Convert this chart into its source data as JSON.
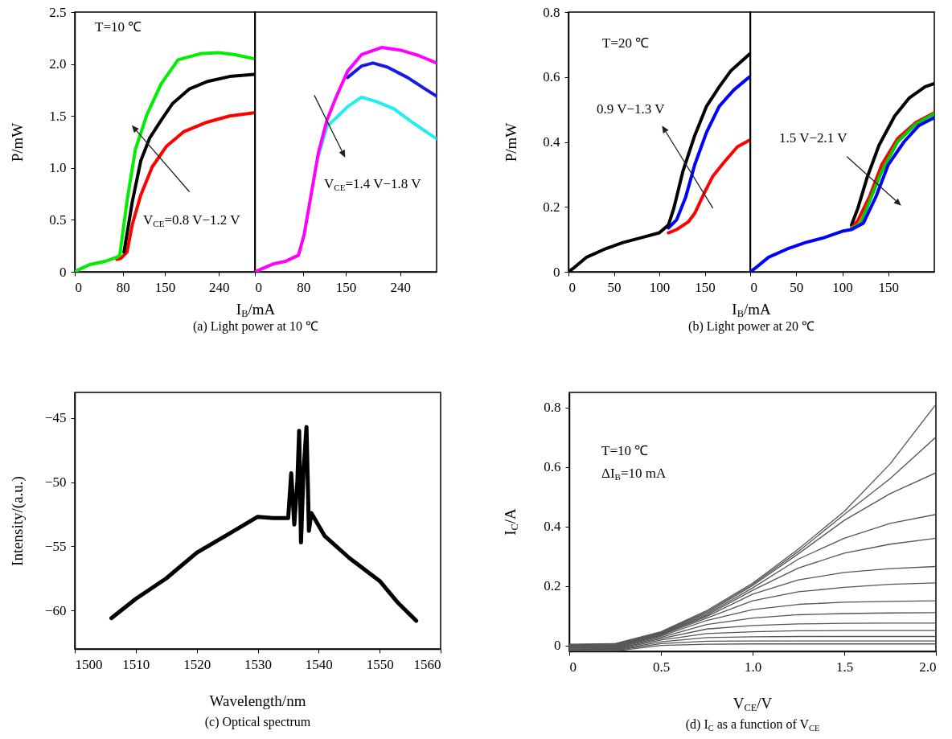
{
  "chart_data": [
    {
      "type": "line",
      "title": "(a) Light power at 10 ℃",
      "xlabel": "I$_{B}$/mA",
      "ylabel": "P/mW",
      "annotations": [
        "T=10 ℃",
        "V$_{CE}$=0.8 V−1.2 V"
      ],
      "xlim": [
        0,
        300
      ],
      "xticks": [
        0,
        80,
        150,
        240
      ],
      "ylim": [
        0,
        2.5
      ],
      "yticks": [
        0,
        0.5,
        {
          "value": 1,
          "label": "1.0"
        },
        1.5,
        {
          "value": 2,
          "label": "2.0"
        },
        2.5
      ],
      "series": [
        {
          "color": "#ff0000",
          "x": [
            70,
            77,
            87,
            96,
            110,
            129,
            153,
            182,
            220,
            258,
            299
          ],
          "values": [
            0.12,
            0.13,
            0.19,
            0.46,
            0.74,
            1.01,
            1.21,
            1.35,
            1.44,
            1.5,
            1.53
          ]
        },
        {
          "color": "#000000",
          "x": [
            82,
            96,
            110,
            125,
            144,
            163,
            191,
            220,
            258,
            299
          ],
          "values": [
            0.19,
            0.68,
            1.07,
            1.29,
            1.46,
            1.62,
            1.76,
            1.83,
            1.88,
            1.9
          ]
        },
        {
          "color": "#00ee00",
          "x": [
            0,
            10,
            25,
            50,
            70,
            75,
            87,
            101,
            120,
            144,
            172,
            210,
            239,
            267,
            299
          ],
          "values": [
            0,
            0.03,
            0.07,
            0.1,
            0.14,
            0.16,
            0.68,
            1.18,
            1.51,
            1.81,
            2.04,
            2.1,
            2.11,
            2.09,
            2.05
          ]
        }
      ]
    },
    {
      "type": "line",
      "tick_labels": "x",
      "annotations": [
        "V$_{CE}$=1.4 V−1.8 V"
      ],
      "xlim": [
        0,
        300
      ],
      "xticks": [
        0,
        80,
        150,
        240
      ],
      "ylim": [
        0,
        2.5
      ],
      "series": [
        {
          "color": "#22eeee",
          "x": [
            105,
            119,
            134,
            153,
            176,
            200,
            229,
            262,
            300
          ],
          "values": [
            1.12,
            1.4,
            1.48,
            1.59,
            1.68,
            1.64,
            1.57,
            1.43,
            1.28
          ]
        },
        {
          "color": "#1a1ae6",
          "x": [
            153,
            176,
            195,
            219,
            252,
            281,
            300
          ],
          "values": [
            1.87,
            1.98,
            2.01,
            1.97,
            1.87,
            1.76,
            1.69
          ]
        },
        {
          "color": "#ff00ff",
          "x": [
            0,
            30,
            50,
            72,
            81,
            91,
            105,
            119,
            134,
            153,
            176,
            210,
            243,
            271,
            300
          ],
          "values": [
            0,
            0.075,
            0.1,
            0.16,
            0.35,
            0.68,
            1.15,
            1.46,
            1.68,
            1.93,
            2.09,
            2.16,
            2.13,
            2.08,
            2.01
          ]
        }
      ]
    },
    {
      "type": "line",
      "title": "(b) Light power at 20 ℃",
      "xlabel": "I$_{B}$/mA",
      "ylabel": "P/mW",
      "annotations": [
        "T=20 ℃",
        "0.9 V−1.3 V"
      ],
      "xlim": [
        0,
        200
      ],
      "xticks": [
        0,
        50,
        100,
        150
      ],
      "ylim": [
        0,
        0.8
      ],
      "yticks": [
        0,
        0.2,
        0.4,
        0.6,
        0.8
      ],
      "series": [
        {
          "color": "#ff0000",
          "x": [
            110,
            119,
            132,
            139,
            149,
            159,
            172,
            186,
            199
          ],
          "values": [
            0.12,
            0.13,
            0.154,
            0.18,
            0.24,
            0.295,
            0.34,
            0.385,
            0.405
          ]
        },
        {
          "color": "#0000ff",
          "x": [
            110,
            119,
            129,
            139,
            152,
            166,
            182,
            199
          ],
          "values": [
            0.135,
            0.16,
            0.23,
            0.33,
            0.43,
            0.51,
            0.56,
            0.6
          ]
        },
        {
          "color": "#000000",
          "x": [
            0,
            5,
            20,
            40,
            60,
            80,
            100,
            110,
            116,
            126,
            139,
            152,
            166,
            179,
            199
          ],
          "values": [
            0,
            0.01,
            0.045,
            0.07,
            0.09,
            0.105,
            0.12,
            0.144,
            0.196,
            0.31,
            0.42,
            0.51,
            0.57,
            0.62,
            0.67
          ]
        }
      ]
    },
    {
      "type": "line",
      "tick_labels": "x",
      "annotations": [
        "1.5 V−2.1 V"
      ],
      "xlim": [
        0,
        200
      ],
      "xticks": [
        0,
        50,
        100,
        150
      ],
      "ylim": [
        0,
        0.8
      ],
      "series": [
        {
          "color": "#000000",
          "x": [
            110,
            117,
            127,
            140,
            157,
            173,
            190,
            200
          ],
          "values": [
            0.144,
            0.196,
            0.29,
            0.39,
            0.48,
            0.536,
            0.57,
            0.58
          ]
        },
        {
          "color": "#ff0000",
          "x": [
            110,
            117,
            130,
            143,
            160,
            180,
            200
          ],
          "values": [
            0.135,
            0.158,
            0.234,
            0.33,
            0.41,
            0.46,
            0.49
          ]
        },
        {
          "color": "#00cc00",
          "x": [
            110,
            120,
            130,
            143,
            160,
            180,
            200
          ],
          "values": [
            0.133,
            0.15,
            0.22,
            0.31,
            0.4,
            0.455,
            0.487
          ]
        },
        {
          "color": "#0000ff",
          "x": [
            0,
            5,
            20,
            40,
            60,
            80,
            100,
            110,
            123,
            137,
            150,
            167,
            183,
            200
          ],
          "values": [
            0,
            0.01,
            0.045,
            0.07,
            0.09,
            0.105,
            0.125,
            0.13,
            0.15,
            0.234,
            0.33,
            0.4,
            0.45,
            0.475
          ]
        }
      ]
    },
    {
      "type": "line",
      "title": "(c) Optical spectrum",
      "xlabel": "Wavelength/nm",
      "ylabel": "Intensity/(a.u.)",
      "xlim": [
        1500,
        1560
      ],
      "xticks": [
        1500,
        1510,
        1520,
        1530,
        1540,
        1550,
        1560
      ],
      "ylim": [
        -63,
        -43
      ],
      "yticks": [
        -60,
        -55,
        -50,
        -45
      ],
      "series": [
        {
          "color": "#000000",
          "x": [
            1506,
            1510,
            1515,
            1520,
            1525,
            1527.5,
            1530,
            1532.5,
            1535,
            1535.5,
            1536,
            1536.5,
            1536.8,
            1537.1,
            1537.5,
            1538,
            1538.4,
            1538.8,
            1541,
            1545,
            1550,
            1553,
            1556
          ],
          "values": [
            -60.6,
            -59.1,
            -57.5,
            -55.5,
            -54.1,
            -53.4,
            -52.7,
            -52.8,
            -52.8,
            -49.3,
            -53.3,
            -50,
            -46,
            -54.7,
            -49.3,
            -45.7,
            -53.8,
            -52.4,
            -54.2,
            -55.9,
            -57.7,
            -59.4,
            -60.8
          ]
        }
      ]
    },
    {
      "type": "line",
      "title": "(d) I$_{C}$ as a function of V$_{CE}$",
      "xlabel": "V$_{CE}$/V",
      "ylabel": "I$_{C}$/A",
      "annotations": [
        "T=10 ℃",
        "ΔI$_{B}$=10 mA"
      ],
      "xlim": [
        0,
        2
      ],
      "xticks": [
        0,
        0.5,
        {
          "value": 1,
          "label": "1.0"
        },
        1.5,
        {
          "value": 2,
          "label": "2.0"
        }
      ],
      "ylim": [
        -0.02,
        0.85
      ],
      "yticks": [
        0,
        0.2,
        0.4,
        0.6,
        0.8
      ],
      "x": [
        0,
        0.25,
        0.5,
        0.75,
        1,
        1.25,
        1.5,
        1.75,
        2
      ],
      "series": [
        {
          "color": "#555555",
          "values": [
            0.004,
            0.006,
            0.046,
            0.117,
            0.209,
            0.324,
            0.45,
            0.61,
            0.81
          ]
        },
        {
          "color": "#555555",
          "values": [
            0.002,
            0.004,
            0.044,
            0.113,
            0.205,
            0.316,
            0.44,
            0.56,
            0.7
          ]
        },
        {
          "color": "#555555",
          "values": [
            0.0,
            0.002,
            0.042,
            0.109,
            0.201,
            0.308,
            0.42,
            0.51,
            0.58
          ]
        },
        {
          "color": "#555555",
          "values": [
            -0.002,
            0.0,
            0.04,
            0.105,
            0.193,
            0.29,
            0.36,
            0.41,
            0.44
          ]
        },
        {
          "color": "#555555",
          "values": [
            -0.004,
            -0.002,
            0.038,
            0.101,
            0.185,
            0.26,
            0.31,
            0.34,
            0.36
          ]
        },
        {
          "color": "#555555",
          "values": [
            -0.006,
            -0.004,
            0.036,
            0.097,
            0.172,
            0.22,
            0.245,
            0.258,
            0.265
          ]
        },
        {
          "color": "#555555",
          "values": [
            -0.008,
            -0.006,
            0.034,
            0.092,
            0.15,
            0.18,
            0.195,
            0.205,
            0.21
          ]
        },
        {
          "color": "#555555",
          "values": [
            -0.01,
            -0.008,
            0.031,
            0.084,
            0.12,
            0.138,
            0.145,
            0.148,
            0.15
          ]
        },
        {
          "color": "#555555",
          "values": [
            -0.012,
            -0.01,
            0.027,
            0.07,
            0.092,
            0.103,
            0.107,
            0.109,
            0.11
          ]
        },
        {
          "color": "#555555",
          "values": [
            -0.014,
            -0.012,
            0.023,
            0.055,
            0.067,
            0.072,
            0.074,
            0.075,
            0.075
          ]
        },
        {
          "color": "#555555",
          "values": [
            -0.016,
            -0.014,
            0.018,
            0.04,
            0.046,
            0.049,
            0.05,
            0.05,
            0.05
          ]
        },
        {
          "color": "#555555",
          "values": [
            -0.018,
            -0.016,
            0.012,
            0.026,
            0.029,
            0.03,
            0.03,
            0.03,
            0.03
          ]
        },
        {
          "color": "#555555",
          "values": [
            -0.019,
            -0.017,
            0.006,
            0.014,
            0.015,
            0.015,
            0.015,
            0.015,
            0.015
          ]
        },
        {
          "color": "#555555",
          "values": [
            -0.02,
            -0.019,
            0.0,
            0.004,
            0.005,
            0.005,
            0.005,
            0.005,
            0.005
          ]
        }
      ]
    }
  ]
}
